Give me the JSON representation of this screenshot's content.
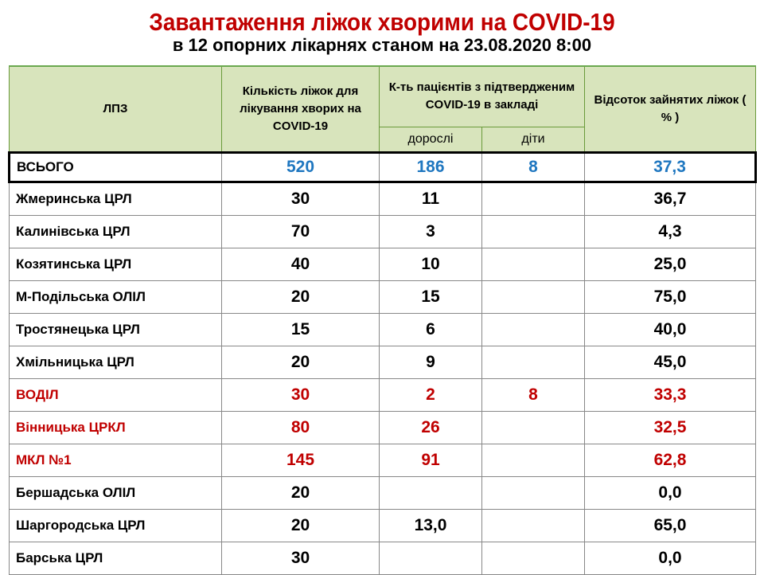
{
  "title": "Завантаження  ліжок хворими на COVID-19",
  "subtitle": "в 12 опорних лікарнях станом  на 23.08.2020  8:00",
  "headers": {
    "facility": "ЛПЗ",
    "beds": "Кількість ліжок для лікування  хворих на COVID-19",
    "patients": "К-ть пацієнтів з підтвердженим COVID-19 в закладі",
    "adults": "дорослі",
    "children": "діти",
    "percent": "Відсоток зайнятих ліжок ( % )"
  },
  "colors": {
    "header_bg": "#d8e4bc",
    "total": "#1f77c0",
    "highlight": "#c00000"
  },
  "total": {
    "name": "ВСЬОГО",
    "beds": "520",
    "adults": "186",
    "children": "8",
    "percent": "37,3"
  },
  "rows": [
    {
      "name": "Жмеринська ЦРЛ",
      "beds": "30",
      "adults": "11",
      "children": "",
      "percent": "36,7",
      "highlight": false
    },
    {
      "name": "Калинівська ЦРЛ",
      "beds": "70",
      "adults": "3",
      "children": "",
      "percent": "4,3",
      "highlight": false
    },
    {
      "name": "Козятинська ЦРЛ",
      "beds": "40",
      "adults": "10",
      "children": "",
      "percent": "25,0",
      "highlight": false
    },
    {
      "name": "М-Подільська ОЛІЛ",
      "beds": "20",
      "adults": "15",
      "children": "",
      "percent": "75,0",
      "highlight": false
    },
    {
      "name": "Тростянецька ЦРЛ",
      "beds": "15",
      "adults": "6",
      "children": "",
      "percent": "40,0",
      "highlight": false
    },
    {
      "name": "Хмільницька ЦРЛ",
      "beds": "20",
      "adults": "9",
      "children": "",
      "percent": "45,0",
      "highlight": false
    },
    {
      "name": "ВОДІЛ",
      "beds": "30",
      "adults": "2",
      "children": "8",
      "percent": "33,3",
      "highlight": true
    },
    {
      "name": "Вінницька ЦРКЛ",
      "beds": "80",
      "adults": "26",
      "children": "",
      "percent": "32,5",
      "highlight": true
    },
    {
      "name": "МКЛ №1",
      "beds": "145",
      "adults": "91",
      "children": "",
      "percent": "62,8",
      "highlight": true
    },
    {
      "name": "Бершадська ОЛІЛ",
      "beds": "20",
      "adults": "",
      "children": "",
      "percent": "0,0",
      "highlight": false
    },
    {
      "name": "Шаргородська  ЦРЛ",
      "beds": "20",
      "adults": "13,0",
      "children": "",
      "percent": "65,0",
      "highlight": false
    },
    {
      "name": "Барська ЦРЛ",
      "beds": "30",
      "adults": "",
      "children": "",
      "percent": "0,0",
      "highlight": false
    }
  ]
}
